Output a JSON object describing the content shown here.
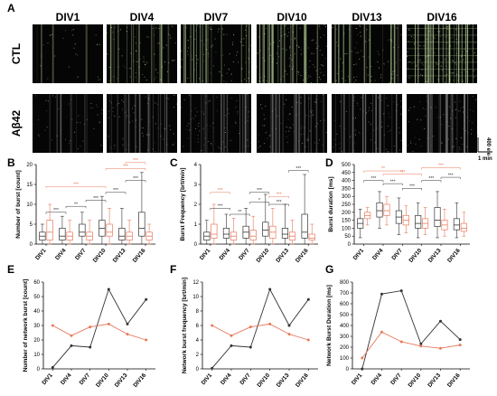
{
  "panel_a": {
    "letter": "A",
    "columns": [
      "DIV1",
      "DIV4",
      "DIV7",
      "DIV10",
      "DIV13",
      "DIV16"
    ],
    "rows": [
      "CTL",
      "Aβ42"
    ],
    "scale_y": "400 ele",
    "scale_x": "1 min",
    "raster_density": {
      "CTL": [
        0.04,
        0.45,
        0.55,
        0.75,
        0.5,
        0.9
      ],
      "Aβ42": [
        0.2,
        0.45,
        0.5,
        0.55,
        0.45,
        0.5
      ]
    }
  },
  "colors": {
    "ctl": "#333333",
    "abeta": "#e8795b",
    "raster_bg": "#050505",
    "raster_ctl": "#b9d39a",
    "raster_abeta": "#9a9a9a"
  },
  "chart_data": [
    {
      "id": "B",
      "type": "box",
      "letter": "B",
      "ylabel": "Number of burst [count]",
      "categories": [
        "DIV1",
        "DIV4",
        "DIV7",
        "DIV10",
        "DIV13",
        "DIV16"
      ],
      "ylim": [
        0,
        20
      ],
      "yticks": [
        0,
        5,
        10,
        15,
        20
      ],
      "series": [
        {
          "group": "CTL",
          "boxes": [
            [
              0,
              1,
              2,
              3,
              5
            ],
            [
              0,
              1,
              2,
              4,
              7
            ],
            [
              0,
              2,
              3,
              5,
              8
            ],
            [
              0,
              2,
              4,
              6,
              12
            ],
            [
              0,
              1,
              2,
              4,
              9
            ],
            [
              0,
              2,
              4,
              8,
              18
            ]
          ]
        },
        {
          "group": "Aβ42",
          "boxes": [
            [
              0,
              1,
              3,
              6,
              10
            ],
            [
              0,
              1,
              2,
              3,
              6
            ],
            [
              0,
              1,
              2,
              3,
              6
            ],
            [
              0,
              2,
              3,
              5,
              9
            ],
            [
              0,
              1,
              2,
              3,
              6
            ],
            [
              0,
              1,
              2,
              3,
              5
            ]
          ]
        }
      ],
      "annotations": [
        {
          "a": 0,
          "b": 1,
          "level": 8.0,
          "text": "***",
          "color": "#333333"
        },
        {
          "a": 1,
          "b": 2,
          "level": 9.5,
          "text": "**",
          "color": "#333333"
        },
        {
          "a": 2,
          "b": 3,
          "level": 11.0,
          "text": "***",
          "color": "#333333"
        },
        {
          "a": 3,
          "b": 4,
          "level": 13.0,
          "text": "***",
          "color": "#333333"
        },
        {
          "a": 4,
          "b": 5,
          "level": 16.0,
          "text": "***",
          "color": "#333333"
        },
        {
          "a": 0,
          "b": 3,
          "level": 14.5,
          "text": "***",
          "color": "#e8795b"
        },
        {
          "a": 3,
          "b": 5,
          "level": 19.0,
          "text": "***",
          "color": "#e8795b"
        },
        {
          "a": 4,
          "b": 5,
          "level": 20.5,
          "text": "***",
          "color": "#e8795b"
        }
      ]
    },
    {
      "id": "C",
      "type": "box",
      "letter": "C",
      "ylabel": "Burst Frequency [brt/min]",
      "categories": [
        "DIV1",
        "DIV4",
        "DIV7",
        "DIV10",
        "DIV13",
        "DIV16"
      ],
      "ylim": [
        0,
        4
      ],
      "yticks": [
        0,
        1,
        2,
        3,
        4
      ],
      "series": [
        {
          "group": "CTL",
          "boxes": [
            [
              0,
              0.2,
              0.4,
              0.6,
              1.2
            ],
            [
              0,
              0.3,
              0.5,
              0.8,
              1.5
            ],
            [
              0,
              0.3,
              0.6,
              0.9,
              1.8
            ],
            [
              0,
              0.4,
              0.7,
              1.1,
              2.5
            ],
            [
              0,
              0.3,
              0.5,
              0.8,
              2.0
            ],
            [
              0,
              0.3,
              0.6,
              1.5,
              3.5
            ]
          ]
        },
        {
          "group": "Aβ42",
          "boxes": [
            [
              0,
              0.3,
              0.5,
              1.0,
              2.0
            ],
            [
              0,
              0.2,
              0.4,
              0.6,
              1.3
            ],
            [
              0,
              0.2,
              0.4,
              0.7,
              1.4
            ],
            [
              0,
              0.3,
              0.6,
              0.9,
              1.8
            ],
            [
              0,
              0.2,
              0.4,
              0.6,
              1.2
            ],
            [
              0,
              0.2,
              0.3,
              0.5,
              1.0
            ]
          ]
        }
      ],
      "annotations": [
        {
          "a": 0,
          "b": 1,
          "level": 1.8,
          "text": "***",
          "color": "#333333"
        },
        {
          "a": 1,
          "b": 2,
          "level": 1.5,
          "text": "**",
          "color": "#333333"
        },
        {
          "a": 2,
          "b": 3,
          "level": 2.1,
          "text": "*",
          "color": "#333333"
        },
        {
          "a": 2,
          "b": 3,
          "level": 2.6,
          "text": "***",
          "color": "#333333"
        },
        {
          "a": 3,
          "b": 4,
          "level": 2.0,
          "text": "***",
          "color": "#333333"
        },
        {
          "a": 4,
          "b": 5,
          "level": 3.7,
          "text": "***",
          "color": "#333333"
        },
        {
          "a": 0,
          "b": 1,
          "level": 2.6,
          "text": "***",
          "color": "#e8795b"
        },
        {
          "a": 3,
          "b": 4,
          "level": 2.4,
          "text": "***",
          "color": "#e8795b"
        }
      ]
    },
    {
      "id": "D",
      "type": "box",
      "letter": "D",
      "ylabel": "Burst duration [ms]",
      "categories": [
        "DIV1",
        "DIV4",
        "DIV7",
        "DIV10",
        "DIV13",
        "DIV16"
      ],
      "ylim": [
        0,
        500
      ],
      "yticks": [
        0,
        50,
        100,
        150,
        200,
        250,
        300,
        350,
        400,
        450,
        500
      ],
      "series": [
        {
          "group": "CTL",
          "boxes": [
            [
              40,
              100,
              130,
              160,
              220
            ],
            [
              100,
              170,
              210,
              260,
              330
            ],
            [
              60,
              130,
              170,
              210,
              290
            ],
            [
              40,
              100,
              130,
              180,
              260
            ],
            [
              40,
              110,
              150,
              230,
              330
            ],
            [
              40,
              90,
              120,
              160,
              260
            ]
          ]
        },
        {
          "group": "Aβ42",
          "boxes": [
            [
              120,
              160,
              180,
              200,
              230
            ],
            [
              120,
              180,
              210,
              250,
              300
            ],
            [
              70,
              120,
              150,
              180,
              240
            ],
            [
              60,
              100,
              130,
              160,
              230
            ],
            [
              50,
              90,
              120,
              150,
              220
            ],
            [
              50,
              80,
              100,
              130,
              200
            ]
          ]
        }
      ],
      "annotations": [
        {
          "a": 0,
          "b": 1,
          "level": 400,
          "text": "***",
          "color": "#333333"
        },
        {
          "a": 1,
          "b": 2,
          "level": 380,
          "text": "***",
          "color": "#333333"
        },
        {
          "a": 2,
          "b": 3,
          "level": 350,
          "text": "***",
          "color": "#333333"
        },
        {
          "a": 3,
          "b": 4,
          "level": 400,
          "text": "***",
          "color": "#333333"
        },
        {
          "a": 4,
          "b": 5,
          "level": 420,
          "text": "***",
          "color": "#333333"
        },
        {
          "a": 0,
          "b": 2,
          "level": 460,
          "text": "**",
          "color": "#e8795b"
        },
        {
          "a": 1,
          "b": 3,
          "level": 440,
          "text": "***",
          "color": "#e8795b"
        },
        {
          "a": 3,
          "b": 5,
          "level": 480,
          "text": "***",
          "color": "#e8795b"
        }
      ]
    },
    {
      "id": "E",
      "type": "line",
      "letter": "E",
      "ylabel": "Number of network burst [count]",
      "categories": [
        "DIV1",
        "DIV4",
        "DIV7",
        "DIV10",
        "DIV13",
        "DIV16"
      ],
      "ylim": [
        0,
        60
      ],
      "yticks": [
        0,
        10,
        20,
        30,
        40,
        50,
        60
      ],
      "series": [
        {
          "group": "CTL",
          "values": [
            1,
            16,
            15,
            55,
            31,
            48
          ]
        },
        {
          "group": "Aβ42",
          "values": [
            30,
            23,
            29,
            31,
            24,
            20
          ]
        }
      ]
    },
    {
      "id": "F",
      "type": "line",
      "letter": "F",
      "ylabel": "Network burst frequency [brt/min]",
      "categories": [
        "DIV1",
        "DIV4",
        "DIV7",
        "DIV10",
        "DIV13",
        "DIV16"
      ],
      "ylim": [
        0,
        12
      ],
      "yticks": [
        0,
        2,
        4,
        6,
        8,
        10,
        12
      ],
      "series": [
        {
          "group": "CTL",
          "values": [
            0.1,
            3.2,
            3.0,
            11.0,
            6.0,
            9.6
          ]
        },
        {
          "group": "Aβ42",
          "values": [
            6.0,
            4.6,
            5.8,
            6.2,
            4.8,
            4.0
          ]
        }
      ]
    },
    {
      "id": "G",
      "type": "line",
      "letter": "G",
      "ylabel": "Network Burst Duration [ms]",
      "categories": [
        "DIV1",
        "DIV4",
        "DIV7",
        "DIV10",
        "DIV13",
        "DIV16"
      ],
      "ylim": [
        0,
        800
      ],
      "yticks": [
        0,
        100,
        200,
        300,
        400,
        500,
        600,
        700,
        800
      ],
      "series": [
        {
          "group": "CTL",
          "values": [
            0,
            690,
            720,
            230,
            440,
            270
          ]
        },
        {
          "group": "Aβ42",
          "values": [
            100,
            340,
            250,
            210,
            190,
            220
          ]
        }
      ]
    }
  ]
}
